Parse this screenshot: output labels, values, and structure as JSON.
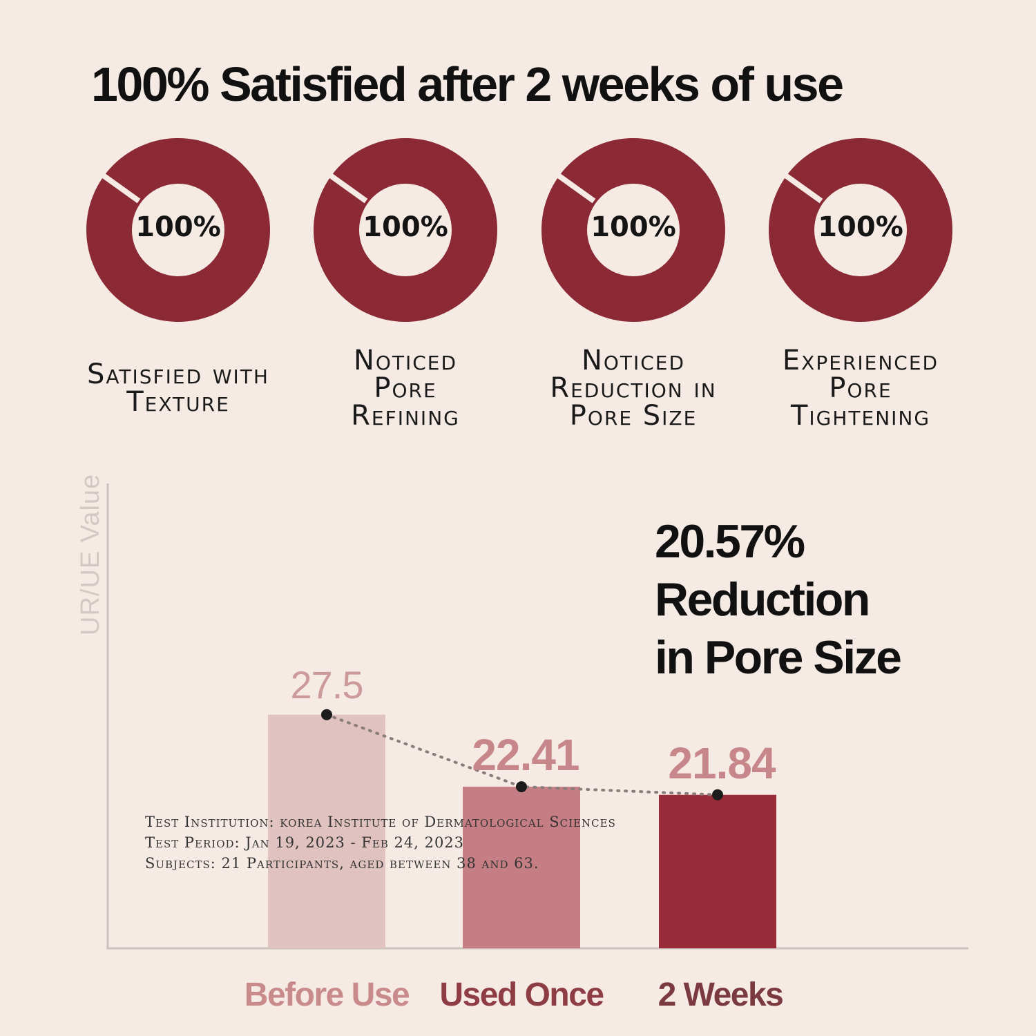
{
  "title": "100% Satisfied after 2 weeks of use",
  "colors": {
    "background": "#f6ebe4",
    "donut": "#8b2a35",
    "bar_before": "#e0c2c0",
    "bar_once": "#c57f84",
    "bar_two_weeks": "#992c39",
    "label_before": "#c98a8c",
    "label_once": "#8e3d45",
    "label_two_weeks": "#7b3a40"
  },
  "donuts": [
    {
      "value": "100%",
      "label_lines": [
        "Satisfied with",
        "Texture"
      ]
    },
    {
      "value": "100%",
      "label_lines": [
        "Noticed",
        "Pore",
        "Refining"
      ]
    },
    {
      "value": "100%",
      "label_lines": [
        "Noticed",
        "Reduction in",
        "Pore Size"
      ]
    },
    {
      "value": "100%",
      "label_lines": [
        "Experienced",
        "Pore",
        "Tightening"
      ]
    }
  ],
  "highlight": {
    "lines": [
      "20.57%",
      "Reduction",
      "in Pore Size"
    ]
  },
  "footnote": {
    "lines": [
      "Test Institution: korea Institute of Dermatological Sciences",
      "Test Period: Jan 19, 2023 - Feb 24, 2023",
      "Subjects: 21 Participants, aged between 38 and 63."
    ]
  },
  "chart_data": {
    "type": "bar",
    "categories": [
      "Before Use",
      "Used Once",
      "2 Weeks"
    ],
    "values": [
      27.5,
      22.41,
      21.84
    ],
    "value_labels": [
      "27.5",
      "22.41",
      "21.84"
    ],
    "ylabel": "UR/UE Value",
    "xlabel": "",
    "trend_line": "dotted",
    "grid": false
  }
}
